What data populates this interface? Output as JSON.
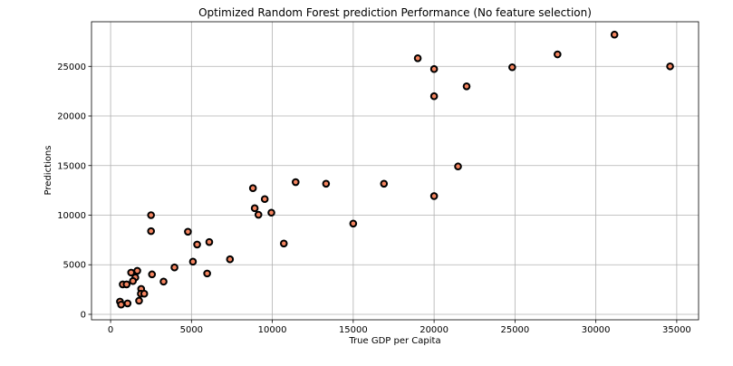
{
  "chart_data": {
    "type": "scatter",
    "title": "Optimized Random Forest prediction Performance (No feature selection)",
    "xlabel": "True GDP per Capita",
    "ylabel": "Predictions",
    "xlim": [
      -1180,
      36350
    ],
    "ylim": [
      -550,
      29500
    ],
    "xticks": [
      0,
      5000,
      10000,
      15000,
      20000,
      25000,
      30000,
      35000
    ],
    "yticks": [
      0,
      5000,
      10000,
      15000,
      20000,
      25000
    ],
    "grid": true,
    "marker_fill": "#f4845f",
    "marker_edge": "#000000",
    "points": [
      [
        2500,
        10000
      ],
      [
        2500,
        8390
      ],
      [
        4780,
        8330
      ],
      [
        5350,
        7040
      ],
      [
        6100,
        7290
      ],
      [
        3950,
        4730
      ],
      [
        5090,
        5310
      ],
      [
        7380,
        5550
      ],
      [
        5970,
        4120
      ],
      [
        3275,
        3300
      ],
      [
        2560,
        4030
      ],
      [
        1270,
        4210
      ],
      [
        1650,
        4390
      ],
      [
        1530,
        3720
      ],
      [
        1380,
        3360
      ],
      [
        750,
        3020
      ],
      [
        990,
        3020
      ],
      [
        1890,
        2560
      ],
      [
        1870,
        2080
      ],
      [
        2080,
        2080
      ],
      [
        1760,
        1370
      ],
      [
        580,
        1280
      ],
      [
        650,
        980
      ],
      [
        1050,
        1100
      ],
      [
        8800,
        12720
      ],
      [
        9530,
        11620
      ],
      [
        8910,
        10700
      ],
      [
        9140,
        10040
      ],
      [
        9940,
        10250
      ],
      [
        11440,
        13330
      ],
      [
        10710,
        7140
      ],
      [
        13320,
        13170
      ],
      [
        16900,
        13170
      ],
      [
        15000,
        9150
      ],
      [
        18990,
        25820
      ],
      [
        20000,
        24730
      ],
      [
        20000,
        21990
      ],
      [
        22010,
        22990
      ],
      [
        21480,
        14910
      ],
      [
        20000,
        11920
      ],
      [
        24830,
        24910
      ],
      [
        27630,
        26210
      ],
      [
        31150,
        28200
      ],
      [
        34590,
        25000
      ]
    ]
  }
}
